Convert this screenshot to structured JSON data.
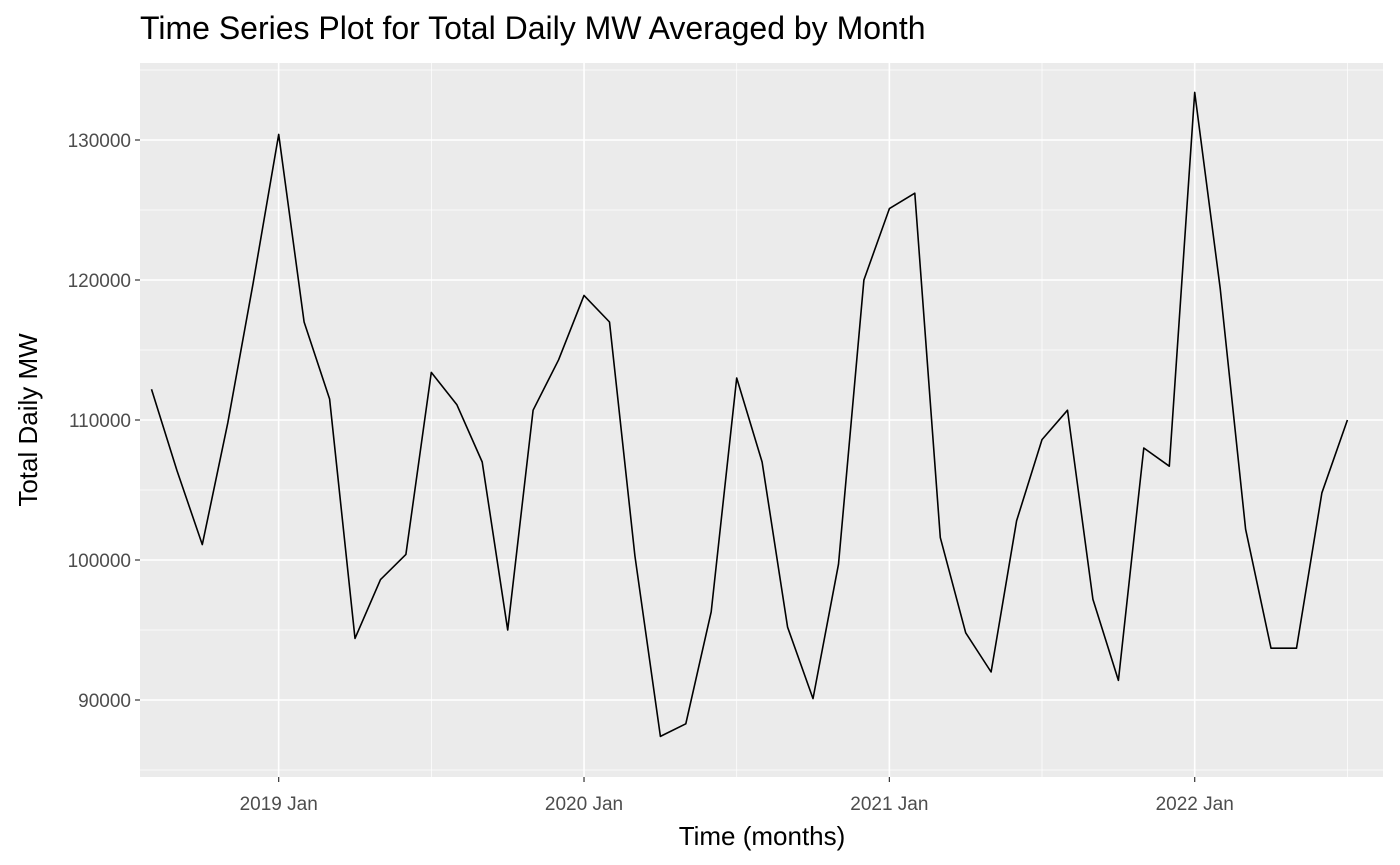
{
  "chart_data": {
    "type": "line",
    "title": "Time Series Plot for Total Daily MW Averaged by Month",
    "xlabel": "Time (months)",
    "ylabel": "Total Daily MW",
    "x_tick_labels": [
      "2019 Jan",
      "2020 Jan",
      "2021 Jan",
      "2022 Jan"
    ],
    "y_tick_labels": [
      "90000",
      "100000",
      "110000",
      "120000",
      "130000"
    ],
    "y_ticks": [
      90000,
      100000,
      110000,
      120000,
      130000
    ],
    "ylim": [
      84500,
      135500
    ],
    "xlim": [
      "2018-07",
      "2022-08"
    ],
    "grid": true,
    "line_color": "#000000",
    "panel_color": "#ebebeb",
    "grid_color": "#ffffff",
    "series": [
      {
        "x": [
          "2018-08",
          "2018-09",
          "2018-10",
          "2018-11",
          "2018-12",
          "2019-01",
          "2019-02",
          "2019-03",
          "2019-04",
          "2019-05",
          "2019-06",
          "2019-07",
          "2019-08",
          "2019-09",
          "2019-10",
          "2019-11",
          "2019-12",
          "2020-01",
          "2020-02",
          "2020-03",
          "2020-04",
          "2020-05",
          "2020-06",
          "2020-07",
          "2020-08",
          "2020-09",
          "2020-10",
          "2020-11",
          "2020-12",
          "2021-01",
          "2021-02",
          "2021-03",
          "2021-04",
          "2021-05",
          "2021-06",
          "2021-07",
          "2021-08",
          "2021-09",
          "2021-10",
          "2021-11",
          "2021-12",
          "2022-01",
          "2022-02",
          "2022-03",
          "2022-04",
          "2022-05",
          "2022-06",
          "2022-07"
        ],
        "values": [
          112200,
          106400,
          101100,
          109800,
          119800,
          130400,
          117000,
          111500,
          94400,
          98600,
          100400,
          113400,
          111100,
          107000,
          95000,
          110700,
          114300,
          118900,
          117000,
          100300,
          87400,
          88300,
          96300,
          113000,
          107000,
          95200,
          90100,
          99700,
          120000,
          125100,
          126200,
          101600,
          94800,
          92000,
          102800,
          108600,
          110700,
          97200,
          91400,
          108000,
          106700,
          133400,
          119400,
          102200,
          93700,
          93700,
          104800,
          110000
        ]
      }
    ]
  }
}
